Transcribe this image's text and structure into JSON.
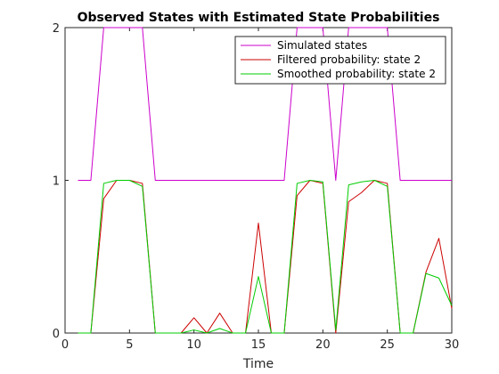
{
  "chart_data": {
    "type": "line",
    "title": "Observed States with Estimated State Probabilities",
    "xlabel": "Time",
    "ylabel": "",
    "xlim": [
      0,
      30
    ],
    "ylim": [
      0,
      2
    ],
    "xticks": [
      0,
      5,
      10,
      15,
      20,
      25,
      30
    ],
    "yticks": [
      0,
      1,
      2
    ],
    "grid": false,
    "legend_position": "top-right",
    "x": [
      1,
      2,
      3,
      4,
      5,
      6,
      7,
      8,
      9,
      10,
      11,
      12,
      13,
      14,
      15,
      16,
      17,
      18,
      19,
      20,
      21,
      22,
      23,
      24,
      25,
      26,
      27,
      28,
      29,
      30
    ],
    "series": [
      {
        "name": "Simulated states",
        "color": "#cc00cc",
        "values": [
          1,
          1,
          2,
          2,
          2,
          2,
          1,
          1,
          1,
          1,
          1,
          1,
          1,
          1,
          1,
          1,
          1,
          2,
          2,
          2,
          1,
          2,
          2,
          2,
          2,
          1,
          1,
          1,
          1,
          1
        ]
      },
      {
        "name": "Filtered probability: state 2",
        "color": "#cc0000",
        "values": [
          0,
          0,
          0.88,
          1,
          1,
          0.98,
          0,
          0,
          0,
          0.1,
          0,
          0.13,
          0,
          0,
          0.72,
          0,
          0,
          0.9,
          1,
          0.98,
          0,
          0.86,
          0.92,
          1,
          0.98,
          0,
          0,
          0.4,
          0.62,
          0.16
        ]
      },
      {
        "name": "Smoothed probability: state 2",
        "color": "#00cc00",
        "values": [
          0,
          0,
          0.98,
          1,
          1,
          0.96,
          0,
          0,
          0,
          0.02,
          0,
          0.03,
          0,
          0,
          0.37,
          0,
          0,
          0.98,
          1,
          0.99,
          0.02,
          0.97,
          0.99,
          1,
          0.96,
          0,
          0,
          0.39,
          0.36,
          0.18
        ]
      }
    ]
  }
}
